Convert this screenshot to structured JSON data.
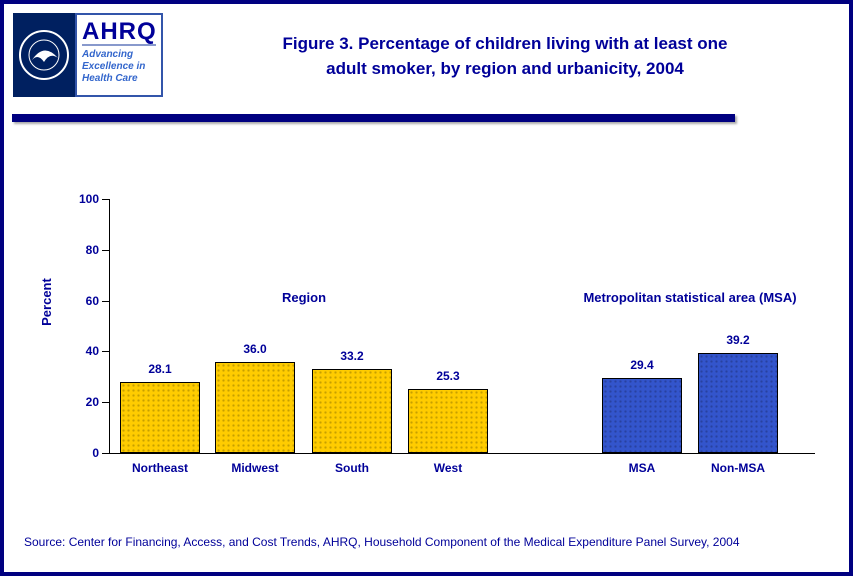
{
  "colors": {
    "navy": "#000099",
    "border": "#000080",
    "tagline": "#3366cc",
    "bar_yellow": "#FFCC00",
    "bar_blue": "#3355CC"
  },
  "header": {
    "title_line1": "Figure 3. Percentage of children living with at least one",
    "title_line2": "adult smoker, by region and urbanicity, 2004",
    "ahrq_name": "AHRQ",
    "ahrq_tagline": "Advancing Excellence in Health Care"
  },
  "chart_data": {
    "type": "bar",
    "title": "Figure 3. Percentage of children living with at least one adult smoker, by region and urbanicity, 2004",
    "xlabel": "",
    "ylabel": "Percent",
    "ylim": [
      0,
      100
    ],
    "yticks": [
      0,
      20,
      40,
      60,
      80,
      100
    ],
    "grid": false,
    "legend": false,
    "categories": [
      "Northeast",
      "Midwest",
      "South",
      "West",
      "MSA",
      "Non-MSA"
    ],
    "values": [
      28.1,
      36.0,
      33.2,
      25.3,
      29.4,
      39.2
    ],
    "groups": [
      {
        "label": "Region",
        "color": "#FFCC00",
        "categories": [
          "Northeast",
          "Midwest",
          "South",
          "West"
        ],
        "values": [
          28.1,
          36.0,
          33.2,
          25.3
        ]
      },
      {
        "label": "Metropolitan statistical area (MSA)",
        "color": "#3355CC",
        "categories": [
          "MSA",
          "Non-MSA"
        ],
        "values": [
          29.4,
          39.2
        ]
      }
    ]
  },
  "footer": {
    "source": "Source: Center for Financing, Access, and Cost Trends, AHRQ, Household Component of the Medical Expenditure Panel Survey, 2004"
  }
}
